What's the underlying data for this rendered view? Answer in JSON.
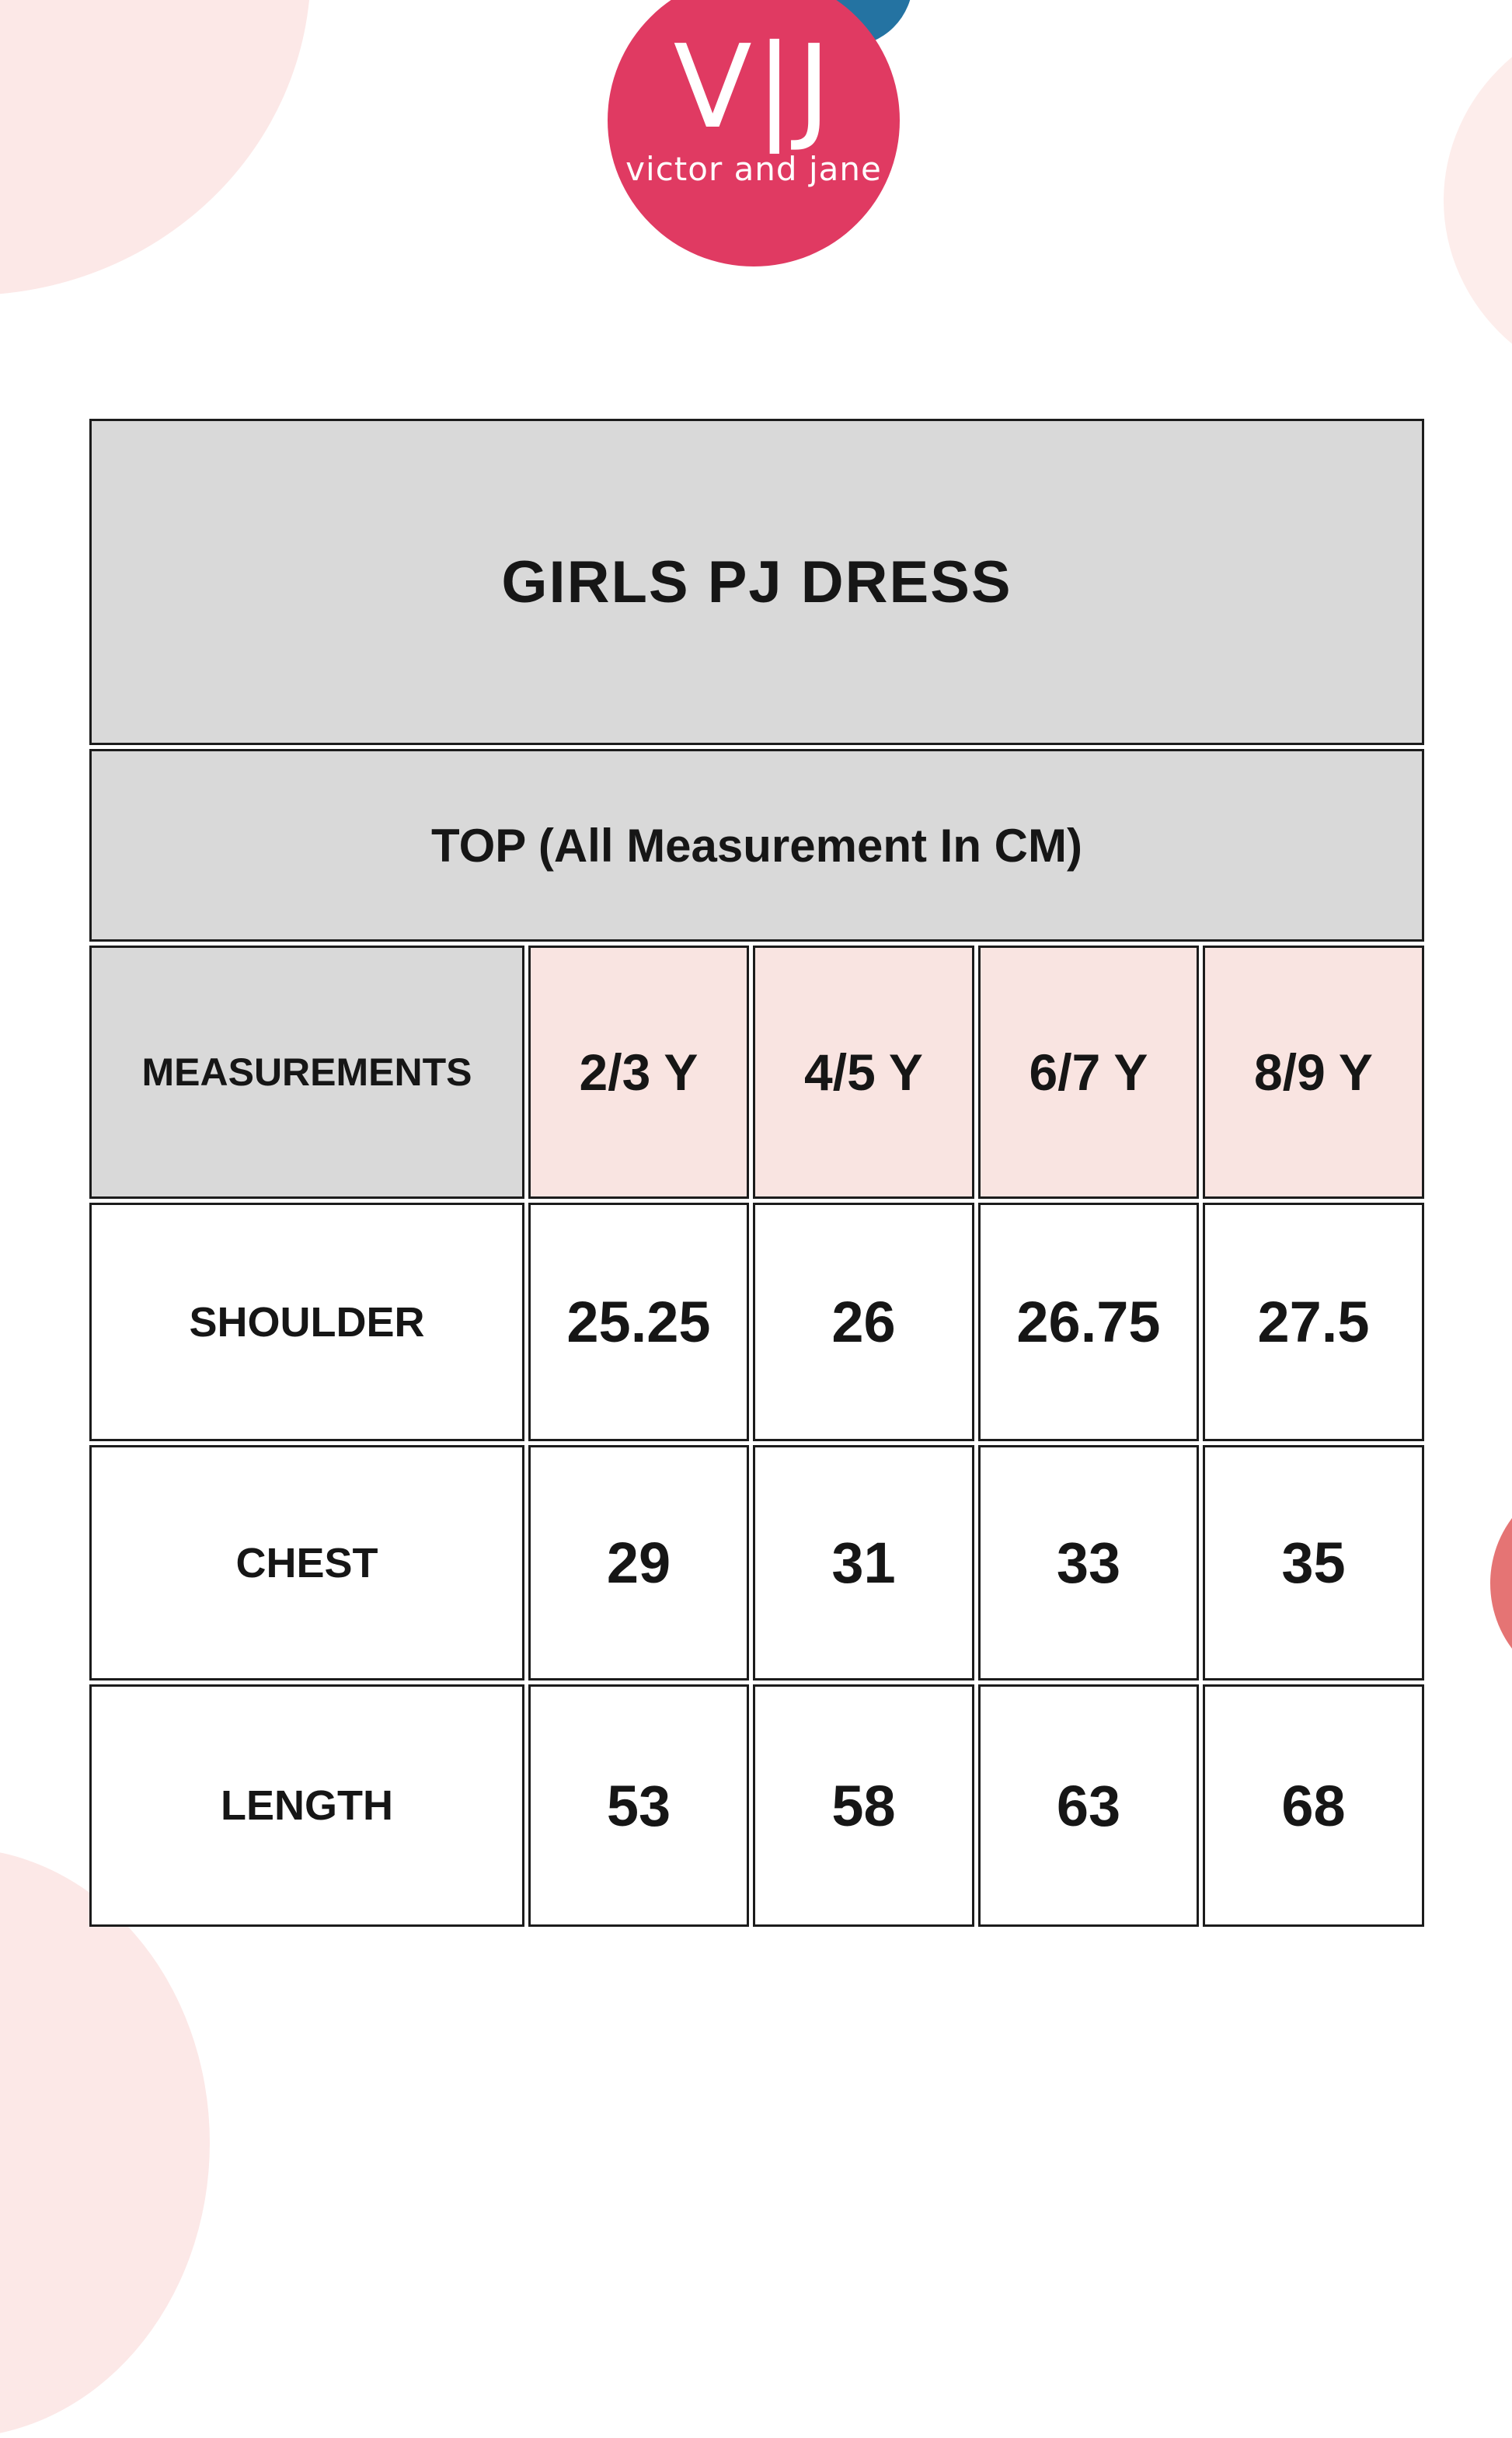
{
  "logo": {
    "monogram": "V|J",
    "brand": "victor and jane"
  },
  "table": {
    "title": "GIRLS PJ DRESS",
    "subtitle": "TOP (All Measurement In CM)",
    "header_label": "MEASUREMENTS",
    "size_columns": [
      "2/3 Y",
      "4/5 Y",
      "6/7 Y",
      "8/9 Y"
    ],
    "rows": [
      {
        "label": "SHOULDER",
        "values": [
          "25.25",
          "26",
          "26.75",
          "27.5"
        ]
      },
      {
        "label": "CHEST",
        "values": [
          "29",
          "31",
          "33",
          "35"
        ]
      },
      {
        "label": "LENGTH",
        "values": [
          "53",
          "58",
          "63",
          "68"
        ]
      }
    ]
  },
  "colors": {
    "brand_pink": "#e03a62",
    "brand_blue": "#2473a2",
    "header_gray": "#d9d9d9",
    "size_header_pink": "#f9e4e1",
    "decorative_blob_pink": "#fce8e7",
    "decorative_coral": "#e57474",
    "cell_border": "#1c1c1c"
  }
}
